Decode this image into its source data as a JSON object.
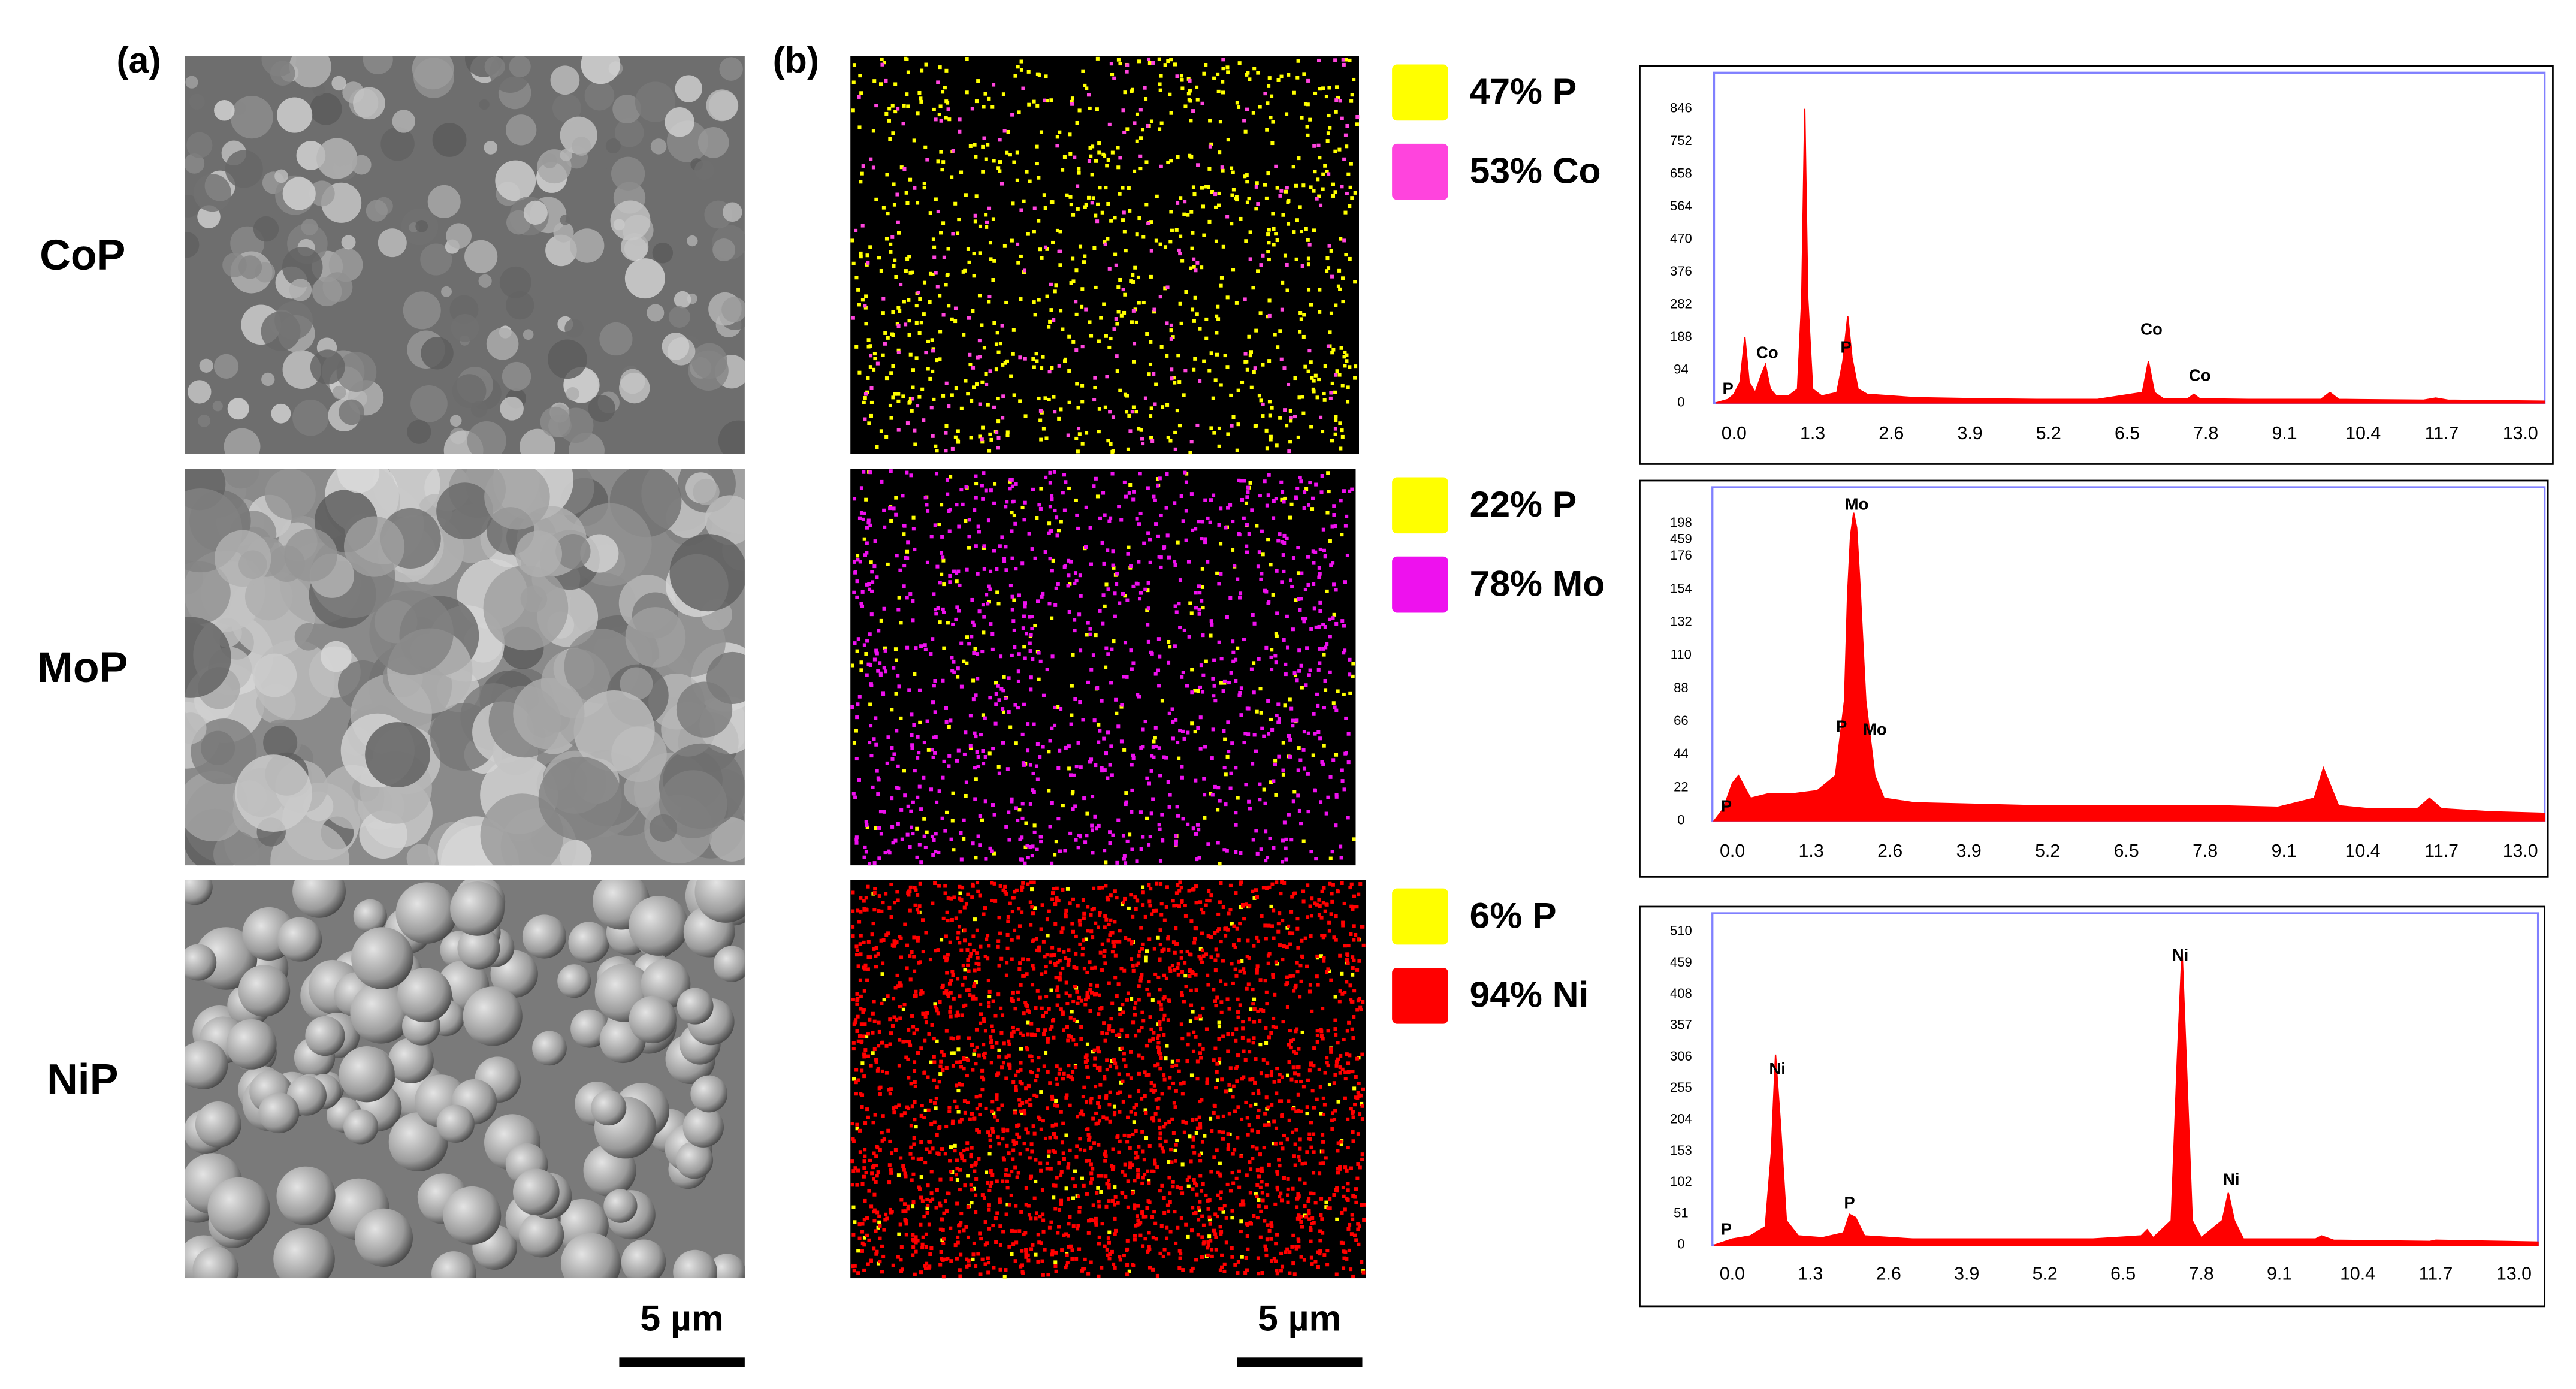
{
  "panel_labels": [
    "(a)",
    "(b)"
  ],
  "rows": [
    {
      "sample": "CoP",
      "elements": [
        {
          "label": "47% P",
          "color": "#ffff00"
        },
        {
          "label": "53% Co",
          "color": "#ff44dd"
        }
      ]
    },
    {
      "sample": "MoP",
      "elements": [
        {
          "label": "22% P",
          "color": "#ffff00"
        },
        {
          "label": "78% Mo",
          "color": "#ee11ee"
        }
      ]
    },
    {
      "sample": "NiP",
      "elements": [
        {
          "label": "6% P",
          "color": "#ffff00"
        },
        {
          "label": "94% Ni",
          "color": "#ff0000"
        }
      ]
    }
  ],
  "scale_bars": [
    "5 µm",
    "5 µm"
  ],
  "chart_data": [
    {
      "type": "area",
      "color": "#ff0000",
      "x": [
        -0.3,
        -0.1,
        0.0,
        0.1,
        0.18,
        0.25,
        0.35,
        0.45,
        0.52,
        0.6,
        0.7,
        0.9,
        1.05,
        1.12,
        1.17,
        1.22,
        1.3,
        1.45,
        1.7,
        1.8,
        1.88,
        1.95,
        2.05,
        2.2,
        3,
        4,
        5,
        6,
        6.75,
        6.85,
        6.95,
        7.1,
        7.5,
        7.6,
        7.7,
        8.5,
        9.7,
        9.85,
        10,
        11.4,
        11.6,
        11.8,
        13.4
      ],
      "values": [
        0,
        10,
        25,
        60,
        190,
        60,
        30,
        80,
        110,
        40,
        20,
        20,
        40,
        300,
        846,
        300,
        40,
        20,
        30,
        120,
        250,
        130,
        40,
        25,
        15,
        12,
        10,
        10,
        30,
        120,
        30,
        12,
        12,
        25,
        12,
        10,
        10,
        30,
        10,
        8,
        14,
        8,
        5
      ],
      "xlim": [
        -0.33,
        13.4
      ],
      "ylim": [
        0,
        950
      ],
      "xticks": [
        {
          "value": 0,
          "label": "0.0"
        },
        1.3,
        2.6,
        3.9,
        5.2,
        6.5,
        7.8,
        9.1,
        10.4,
        11.7,
        {
          "value": 13,
          "label": "13.0"
        }
      ],
      "yticks": [
        0,
        94,
        188,
        282,
        376,
        470,
        564,
        658,
        752,
        846
      ],
      "annotations": [
        {
          "text": "P",
          "x": -0.1,
          "y": 38
        },
        {
          "text": "Co",
          "x": 0.55,
          "y": 142
        },
        {
          "text": "P",
          "x": 1.85,
          "y": 157
        },
        {
          "text": "Co",
          "x": 6.9,
          "y": 209
        },
        {
          "text": "Co",
          "x": 7.7,
          "y": 76
        }
      ]
    },
    {
      "type": "area",
      "color": "#ff0000",
      "x": [
        -0.3,
        -0.15,
        0,
        0.1,
        0.3,
        0.6,
        1,
        1.4,
        1.7,
        1.85,
        1.9,
        1.95,
        2.0,
        2.05,
        2.1,
        2.2,
        2.35,
        2.5,
        3,
        4,
        5,
        6,
        7,
        8,
        9,
        9.6,
        9.75,
        9.85,
        10,
        10.5,
        11.3,
        11.5,
        11.7,
        12.5,
        13.4
      ],
      "values": [
        0,
        8,
        25,
        30,
        15,
        18,
        18,
        20,
        30,
        80,
        150,
        190,
        205,
        195,
        160,
        80,
        30,
        15,
        12,
        11,
        10,
        10,
        10,
        10,
        9,
        15,
        35,
        25,
        10,
        8,
        8,
        15,
        8,
        6,
        5
      ],
      "xlim": [
        -0.33,
        13.4
      ],
      "ylim": [
        0,
        222
      ],
      "xticks": [
        {
          "value": 0,
          "label": "0.0"
        },
        1.3,
        2.6,
        3.9,
        5.2,
        6.5,
        7.8,
        9.1,
        10.4,
        11.7,
        {
          "value": 13,
          "label": "13.0"
        }
      ],
      "yticks": [
        0,
        22,
        44,
        66,
        88,
        110,
        132,
        154,
        176,
        198
      ],
      "stray_labels": [
        {
          "text": "459",
          "y": 187
        }
      ],
      "annotations": [
        {
          "text": "Mo",
          "x": 2.05,
          "y": 210
        },
        {
          "text": "P",
          "x": 1.8,
          "y": 62
        },
        {
          "text": "Mo",
          "x": 2.35,
          "y": 60
        },
        {
          "text": "P",
          "x": -0.1,
          "y": 9
        }
      ]
    },
    {
      "type": "area",
      "color": "#ff0000",
      "x": [
        -0.3,
        0,
        0.3,
        0.55,
        0.65,
        0.72,
        0.8,
        0.9,
        1.1,
        1.5,
        1.85,
        1.95,
        2.05,
        2.2,
        3,
        4,
        5,
        6,
        6.8,
        6.9,
        7.0,
        7.3,
        7.4,
        7.48,
        7.55,
        7.65,
        7.8,
        8.15,
        8.25,
        8.35,
        8.5,
        9.7,
        9.8,
        10,
        11.6,
        11.7,
        13.4
      ],
      "values": [
        0,
        10,
        15,
        30,
        150,
        310,
        200,
        40,
        15,
        12,
        20,
        50,
        45,
        15,
        10,
        10,
        10,
        10,
        15,
        25,
        12,
        40,
        300,
        480,
        300,
        40,
        12,
        40,
        85,
        40,
        10,
        10,
        15,
        8,
        6,
        8,
        5
      ],
      "xlim": [
        -0.33,
        13.4
      ],
      "ylim": [
        0,
        540
      ],
      "xticks": [
        {
          "value": 0,
          "label": "0.0"
        },
        1.3,
        2.6,
        3.9,
        5.2,
        6.5,
        7.8,
        9.1,
        10.4,
        11.7,
        {
          "value": 13,
          "label": "13.0"
        }
      ],
      "yticks": [
        0,
        51,
        102,
        153,
        204,
        255,
        306,
        357,
        408,
        459,
        510
      ],
      "annotations": [
        {
          "text": "Ni",
          "x": 0.75,
          "y": 285
        },
        {
          "text": "P",
          "x": 1.95,
          "y": 67
        },
        {
          "text": "Ni",
          "x": 7.45,
          "y": 470
        },
        {
          "text": "Ni",
          "x": 8.3,
          "y": 105
        },
        {
          "text": "P",
          "x": -0.1,
          "y": 24
        }
      ]
    }
  ]
}
